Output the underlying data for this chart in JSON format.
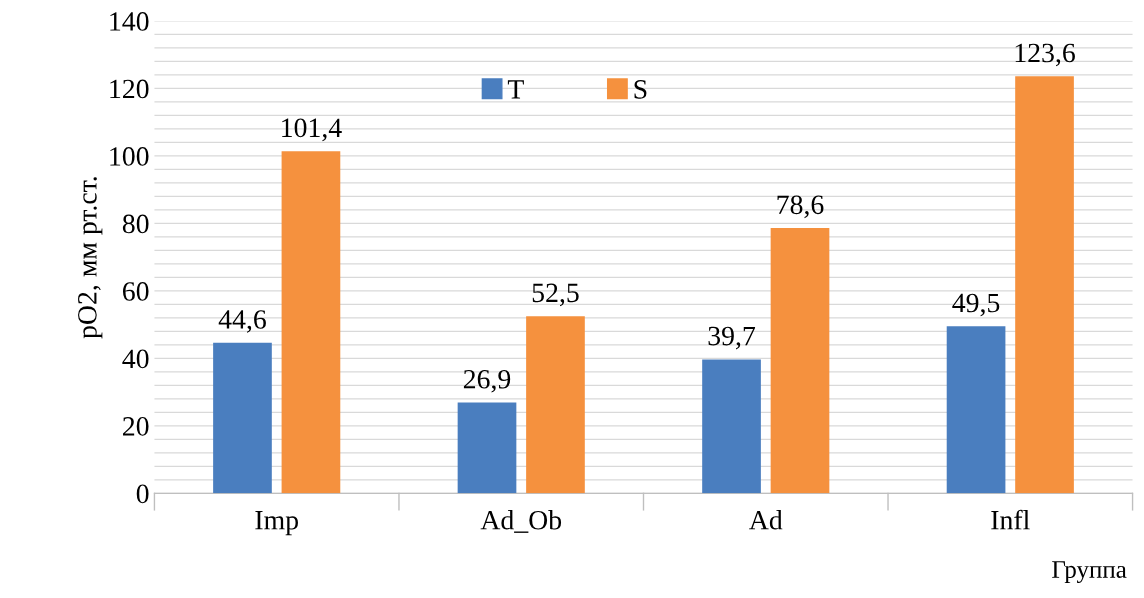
{
  "chart_data": {
    "type": "bar",
    "xlabel": "Группа",
    "ylabel": "pO2, мм рт.ст.",
    "categories": [
      "Imp",
      "Ad_Ob",
      "Ad",
      "Infl"
    ],
    "series": [
      {
        "name": "T",
        "color": "#4a7ebf",
        "values": [
          44.6,
          26.9,
          39.7,
          49.5
        ],
        "value_labels": [
          "44,6",
          "26,9",
          "39,7",
          "49,5"
        ]
      },
      {
        "name": "S",
        "color": "#f5913e",
        "values": [
          101.4,
          52.5,
          78.6,
          123.6
        ],
        "value_labels": [
          "101,4",
          "52,5",
          "78,6",
          "123,6"
        ]
      }
    ],
    "ylim": [
      0,
      140
    ],
    "yticks": [
      0,
      {
        "value": 4,
        "label": null
      },
      {
        "value": 8,
        "label": null
      },
      {
        "value": 12,
        "label": null
      },
      {
        "value": 16,
        "label": null
      },
      20,
      {
        "value": 24,
        "label": null
      },
      {
        "value": 28,
        "label": null
      },
      {
        "value": 32,
        "label": null
      },
      {
        "value": 36,
        "label": null
      },
      40,
      {
        "value": 44,
        "label": null
      },
      {
        "value": 48,
        "label": null
      },
      {
        "value": 52,
        "label": null
      },
      {
        "value": 56,
        "label": null
      },
      60,
      {
        "value": 64,
        "label": null
      },
      {
        "value": 68,
        "label": null
      },
      {
        "value": 72,
        "label": null
      },
      {
        "value": 76,
        "label": null
      },
      80,
      {
        "value": 84,
        "label": null
      },
      {
        "value": 88,
        "label": null
      },
      {
        "value": 92,
        "label": null
      },
      {
        "value": 96,
        "label": null
      },
      100,
      {
        "value": 104,
        "label": null
      },
      {
        "value": 108,
        "label": null
      },
      {
        "value": 112,
        "label": null
      },
      {
        "value": 116,
        "label": null
      },
      120,
      {
        "value": 124,
        "label": null
      },
      {
        "value": 128,
        "label": null
      },
      {
        "value": 132,
        "label": null
      },
      {
        "value": 136,
        "label": null
      },
      140
    ],
    "grid": "y",
    "legend": "top"
  }
}
